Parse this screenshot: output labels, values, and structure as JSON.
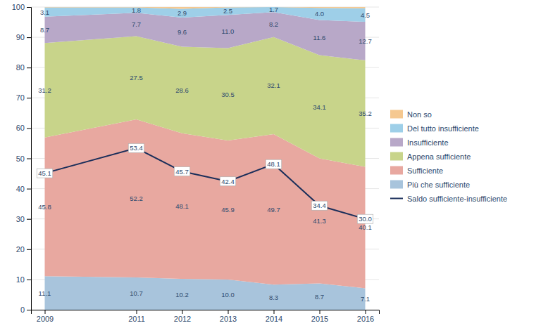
{
  "chart_data": {
    "type": "area",
    "stacked": true,
    "x": [
      2009,
      2011,
      2012,
      2013,
      2014,
      2015,
      2016
    ],
    "xlim": [
      2008.7,
      2016.3
    ],
    "xticks": [
      2009,
      2011,
      2012,
      2013,
      2014,
      2015,
      2016
    ],
    "ylim": [
      0,
      100
    ],
    "yticks": [
      0,
      10,
      20,
      30,
      40,
      50,
      60,
      70,
      80,
      90,
      100
    ],
    "grid": true,
    "legend": "right",
    "series": [
      {
        "name": "Più che sufficiente",
        "color": "#a8c4dc",
        "data_labels": true,
        "values": [
          11.1,
          10.7,
          10.2,
          10.0,
          8.3,
          8.7,
          7.1
        ],
        "value_labels": [
          "11.1",
          "10.7",
          "10.2",
          "10.0",
          "8.3",
          "8.7",
          "7.1"
        ]
      },
      {
        "name": "Sufficiente",
        "color": "#e8a8a0",
        "data_labels": true,
        "values": [
          45.8,
          52.2,
          48.1,
          45.9,
          49.7,
          41.3,
          40.1
        ],
        "value_labels": [
          "45.8",
          "52.2",
          "48.1",
          "45.9",
          "49.7",
          "41.3",
          "40.1"
        ]
      },
      {
        "name": "Appena sufficiente",
        "color": "#c8d48a",
        "data_labels": true,
        "values": [
          31.2,
          27.5,
          28.6,
          30.5,
          32.1,
          34.1,
          35.2
        ],
        "value_labels": [
          "31.2",
          "27.5",
          "28.6",
          "30.5",
          "32.1",
          "34.1",
          "35.2"
        ]
      },
      {
        "name": "Insufficiente",
        "color": "#b8a8c8",
        "data_labels": true,
        "values": [
          8.7,
          7.7,
          9.6,
          11.0,
          8.2,
          11.6,
          12.7
        ],
        "value_labels": [
          "8.7",
          "7.7",
          "9.6",
          "11.0",
          "8.2",
          "11.6",
          "12.7"
        ]
      },
      {
        "name": "Del tutto insufficiente",
        "color": "#9ecfe8",
        "data_labels": true,
        "values": [
          3.1,
          1.8,
          2.9,
          2.5,
          1.7,
          4.0,
          4.5
        ],
        "value_labels": [
          "3.1",
          "1.8",
          "2.9",
          "2.5",
          "1.7",
          "4.0",
          "4.5"
        ]
      },
      {
        "name": "Non so",
        "color": "#f5c890",
        "data_labels": false,
        "values": [
          0.1,
          0.1,
          0.6,
          0.1,
          0.0,
          0.3,
          0.4
        ]
      },
      {
        "name": "Saldo sufficiente-insufficiente",
        "type": "line",
        "color": "#1a2e5a",
        "data_labels": true,
        "values": [
          45.1,
          53.4,
          45.7,
          42.4,
          48.1,
          34.4,
          30.0
        ],
        "value_labels": [
          "45.1",
          "53.4",
          "45.7",
          "42.4",
          "48.1",
          "34.4",
          "30.0"
        ]
      }
    ]
  }
}
